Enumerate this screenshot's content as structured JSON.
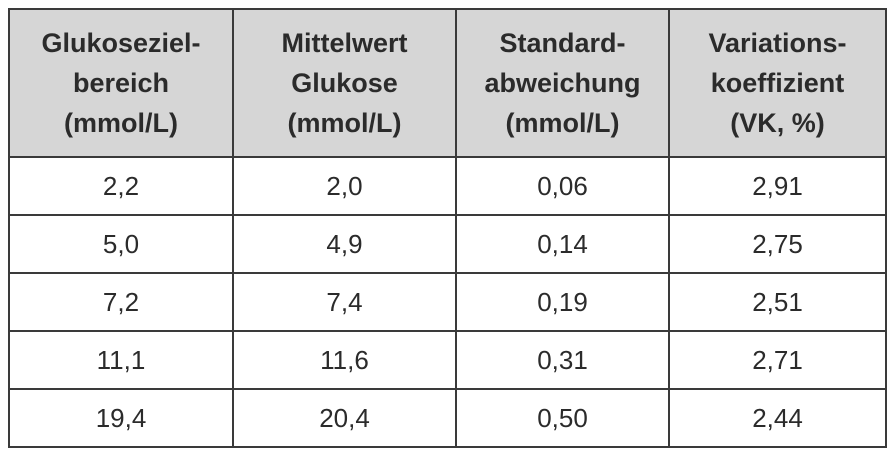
{
  "table": {
    "header": [
      [
        "Glukoseziel-",
        "bereich",
        "(mmol/L)"
      ],
      [
        "Mittelwert",
        "Glukose",
        "(mmol/L)"
      ],
      [
        "Standard-",
        "abweichung",
        "(mmol/L)"
      ],
      [
        "Variations-",
        "koeffizient",
        "(VK, %)"
      ]
    ],
    "rows": [
      [
        "2,2",
        "2,0",
        "0,06",
        "2,91"
      ],
      [
        "5,0",
        "4,9",
        "0,14",
        "2,75"
      ],
      [
        "7,2",
        "7,4",
        "0,19",
        "2,51"
      ],
      [
        "11,1",
        "11,6",
        "0,31",
        "2,71"
      ],
      [
        "19,4",
        "20,4",
        "0,50",
        "2,44"
      ]
    ]
  }
}
